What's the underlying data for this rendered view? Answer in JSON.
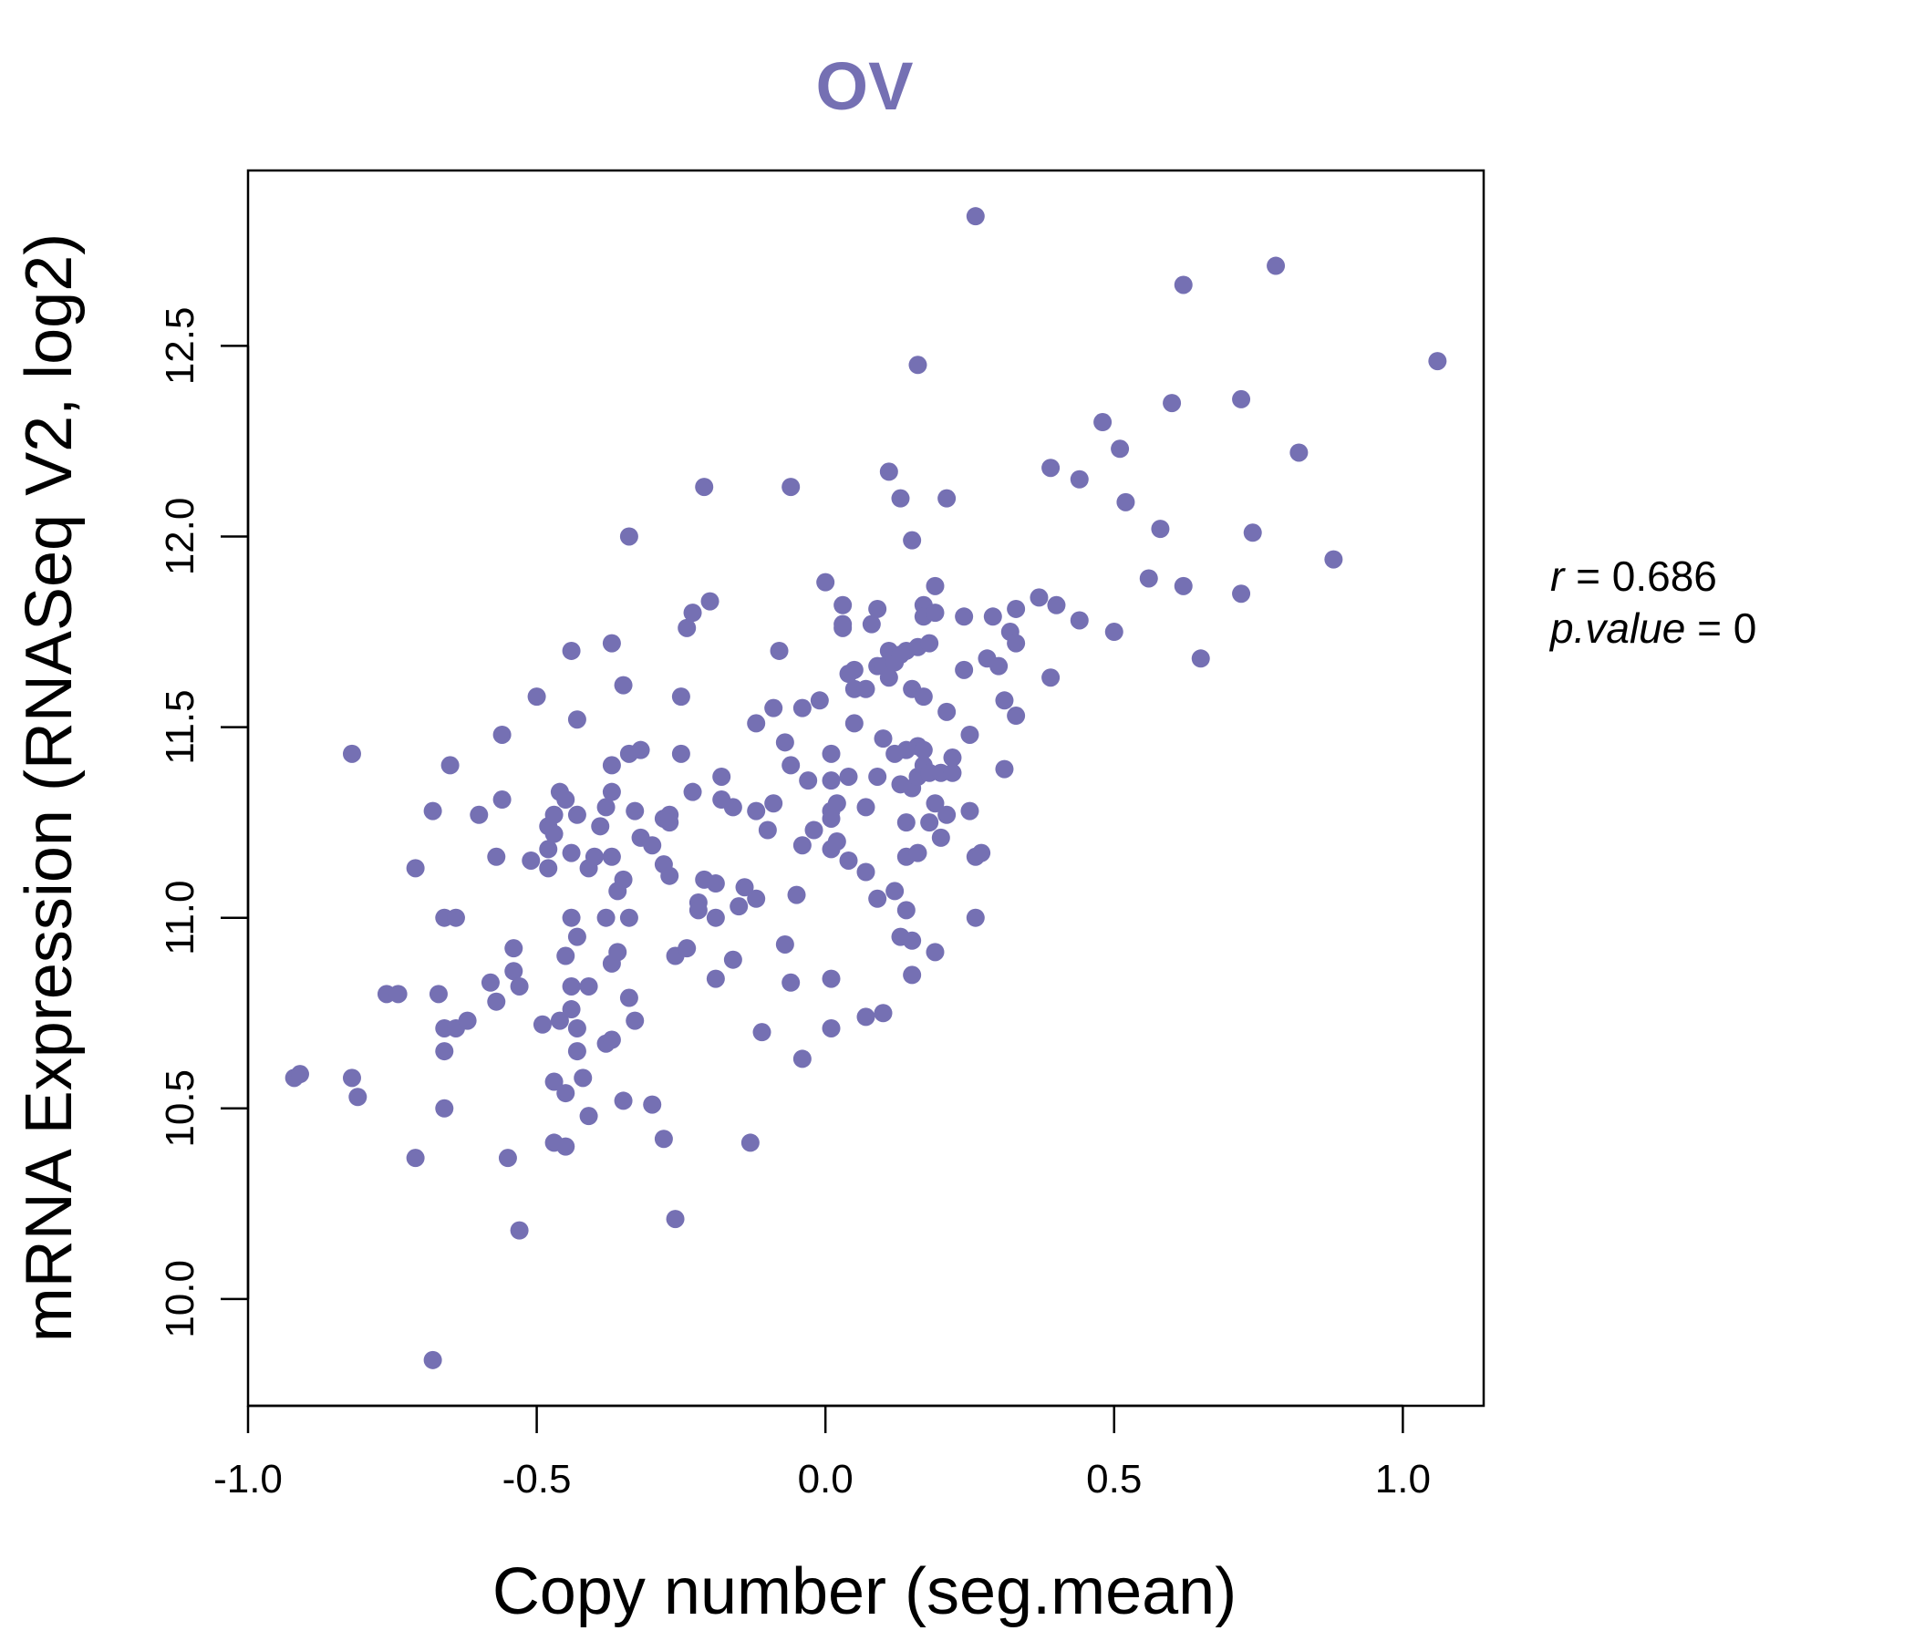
{
  "chart_data": {
    "type": "scatter",
    "title": "OV",
    "xlabel": "Copy number (seg.mean)",
    "ylabel": "mRNA Expression (RNASeq V2, log2)",
    "xlim": [
      -1.0,
      1.14
    ],
    "ylim": [
      9.72,
      12.96
    ],
    "x_ticks": [
      -1.0,
      -0.5,
      0.0,
      0.5,
      1.0
    ],
    "x_tick_labels": [
      "-1.0",
      "-0.5",
      "0.0",
      "0.5",
      "1.0"
    ],
    "y_ticks": [
      10.0,
      10.5,
      11.0,
      11.5,
      12.0,
      12.5
    ],
    "y_tick_labels": [
      "10.0",
      "10.5",
      "11.0",
      "11.5",
      "12.0",
      "12.5"
    ],
    "annotation": {
      "r_label": "r",
      "r_value": "0.686",
      "p_label": "p.value",
      "p_value": "0"
    },
    "color": "#7570b3",
    "points": [
      [
        -0.92,
        10.58
      ],
      [
        -0.91,
        10.59
      ],
      [
        -0.82,
        11.43
      ],
      [
        -0.82,
        10.58
      ],
      [
        -0.81,
        10.53
      ],
      [
        -0.76,
        10.8
      ],
      [
        -0.74,
        10.8
      ],
      [
        -0.71,
        11.13
      ],
      [
        -0.71,
        10.37
      ],
      [
        -0.68,
        11.28
      ],
      [
        -0.67,
        10.8
      ],
      [
        -0.66,
        10.71
      ],
      [
        -0.66,
        10.65
      ],
      [
        -0.66,
        10.5
      ],
      [
        -0.66,
        11.0
      ],
      [
        -0.65,
        11.4
      ],
      [
        -0.64,
        11.0
      ],
      [
        -0.64,
        10.71
      ],
      [
        -0.62,
        10.73
      ],
      [
        -0.6,
        11.27
      ],
      [
        -0.58,
        10.83
      ],
      [
        -0.57,
        11.16
      ],
      [
        -0.57,
        10.78
      ],
      [
        -0.56,
        11.48
      ],
      [
        -0.56,
        11.31
      ],
      [
        -0.55,
        10.37
      ],
      [
        -0.54,
        10.92
      ],
      [
        -0.54,
        10.86
      ],
      [
        -0.53,
        10.82
      ],
      [
        -0.53,
        10.18
      ],
      [
        -0.51,
        11.15
      ],
      [
        -0.5,
        11.58
      ],
      [
        -0.49,
        10.72
      ],
      [
        -0.48,
        11.24
      ],
      [
        -0.48,
        11.18
      ],
      [
        -0.48,
        11.13
      ],
      [
        -0.47,
        11.27
      ],
      [
        -0.47,
        11.22
      ],
      [
        -0.47,
        10.57
      ],
      [
        -0.47,
        10.41
      ],
      [
        -0.46,
        11.33
      ],
      [
        -0.46,
        10.73
      ],
      [
        -0.45,
        11.31
      ],
      [
        -0.45,
        10.9
      ],
      [
        -0.45,
        10.54
      ],
      [
        -0.45,
        10.4
      ],
      [
        -0.44,
        11.7
      ],
      [
        -0.44,
        11.17
      ],
      [
        -0.44,
        11.0
      ],
      [
        -0.44,
        10.82
      ],
      [
        -0.44,
        10.76
      ],
      [
        -0.43,
        11.52
      ],
      [
        -0.43,
        11.27
      ],
      [
        -0.43,
        10.95
      ],
      [
        -0.43,
        10.65
      ],
      [
        -0.43,
        10.71
      ],
      [
        -0.42,
        10.58
      ],
      [
        -0.41,
        10.48
      ],
      [
        -0.41,
        11.13
      ],
      [
        -0.41,
        10.82
      ],
      [
        -0.4,
        11.16
      ],
      [
        -0.39,
        11.24
      ],
      [
        -0.38,
        11.29
      ],
      [
        -0.38,
        11.0
      ],
      [
        -0.38,
        10.67
      ],
      [
        -0.37,
        11.72
      ],
      [
        -0.37,
        11.4
      ],
      [
        -0.37,
        11.33
      ],
      [
        -0.37,
        11.16
      ],
      [
        -0.37,
        10.88
      ],
      [
        -0.37,
        10.68
      ],
      [
        -0.36,
        11.07
      ],
      [
        -0.36,
        10.91
      ],
      [
        -0.35,
        11.61
      ],
      [
        -0.35,
        11.1
      ],
      [
        -0.35,
        10.52
      ],
      [
        -0.34,
        12.0
      ],
      [
        -0.34,
        11.43
      ],
      [
        -0.34,
        11.0
      ],
      [
        -0.34,
        10.79
      ],
      [
        -0.33,
        11.28
      ],
      [
        -0.33,
        10.73
      ],
      [
        -0.32,
        11.44
      ],
      [
        -0.32,
        11.21
      ],
      [
        -0.3,
        11.19
      ],
      [
        -0.3,
        10.51
      ],
      [
        -0.28,
        11.26
      ],
      [
        -0.28,
        11.14
      ],
      [
        -0.28,
        10.42
      ],
      [
        -0.27,
        11.27
      ],
      [
        -0.27,
        11.25
      ],
      [
        -0.27,
        11.11
      ],
      [
        -0.26,
        10.21
      ],
      [
        -0.26,
        10.9
      ],
      [
        -0.25,
        11.58
      ],
      [
        -0.25,
        11.43
      ],
      [
        -0.24,
        11.76
      ],
      [
        -0.24,
        10.92
      ],
      [
        -0.23,
        11.8
      ],
      [
        -0.23,
        11.33
      ],
      [
        -0.22,
        11.04
      ],
      [
        -0.22,
        11.02
      ],
      [
        -0.21,
        12.13
      ],
      [
        -0.21,
        11.1
      ],
      [
        -0.2,
        11.83
      ],
      [
        -0.19,
        11.09
      ],
      [
        -0.19,
        11.0
      ],
      [
        -0.19,
        10.84
      ],
      [
        -0.18,
        11.37
      ],
      [
        -0.18,
        11.31
      ],
      [
        -0.16,
        11.29
      ],
      [
        -0.16,
        10.89
      ],
      [
        -0.15,
        11.03
      ],
      [
        -0.14,
        11.08
      ],
      [
        -0.13,
        10.41
      ],
      [
        -0.12,
        11.51
      ],
      [
        -0.12,
        11.28
      ],
      [
        -0.12,
        11.05
      ],
      [
        -0.11,
        10.7
      ],
      [
        -0.1,
        11.23
      ],
      [
        -0.09,
        11.55
      ],
      [
        -0.09,
        11.3
      ],
      [
        -0.08,
        11.7
      ],
      [
        -0.07,
        11.46
      ],
      [
        -0.07,
        10.93
      ],
      [
        -0.06,
        11.4
      ],
      [
        -0.06,
        10.83
      ],
      [
        -0.06,
        12.13
      ],
      [
        -0.05,
        11.06
      ],
      [
        -0.04,
        11.55
      ],
      [
        -0.04,
        11.19
      ],
      [
        -0.04,
        10.63
      ],
      [
        -0.03,
        11.36
      ],
      [
        -0.02,
        11.23
      ],
      [
        -0.01,
        11.57
      ],
      [
        0.0,
        11.88
      ],
      [
        0.01,
        11.43
      ],
      [
        0.01,
        11.36
      ],
      [
        0.01,
        11.28
      ],
      [
        0.01,
        11.26
      ],
      [
        0.01,
        11.18
      ],
      [
        0.01,
        10.84
      ],
      [
        0.01,
        10.71
      ],
      [
        0.02,
        11.3
      ],
      [
        0.02,
        11.2
      ],
      [
        0.03,
        11.82
      ],
      [
        0.03,
        11.76
      ],
      [
        0.03,
        11.77
      ],
      [
        0.04,
        11.64
      ],
      [
        0.04,
        11.37
      ],
      [
        0.04,
        11.15
      ],
      [
        0.05,
        11.6
      ],
      [
        0.05,
        11.65
      ],
      [
        0.05,
        11.51
      ],
      [
        0.07,
        11.6
      ],
      [
        0.07,
        11.29
      ],
      [
        0.07,
        11.12
      ],
      [
        0.07,
        10.74
      ],
      [
        0.08,
        11.77
      ],
      [
        0.09,
        11.81
      ],
      [
        0.09,
        11.66
      ],
      [
        0.09,
        11.37
      ],
      [
        0.09,
        11.05
      ],
      [
        0.1,
        11.47
      ],
      [
        0.1,
        11.66
      ],
      [
        0.1,
        10.75
      ],
      [
        0.11,
        11.63
      ],
      [
        0.11,
        11.7
      ],
      [
        0.11,
        12.17
      ],
      [
        0.12,
        11.67
      ],
      [
        0.12,
        11.43
      ],
      [
        0.12,
        11.07
      ],
      [
        0.13,
        11.69
      ],
      [
        0.13,
        11.35
      ],
      [
        0.13,
        12.1
      ],
      [
        0.13,
        10.95
      ],
      [
        0.14,
        11.7
      ],
      [
        0.14,
        11.44
      ],
      [
        0.14,
        11.16
      ],
      [
        0.14,
        11.02
      ],
      [
        0.14,
        11.25
      ],
      [
        0.15,
        11.99
      ],
      [
        0.15,
        11.6
      ],
      [
        0.15,
        11.34
      ],
      [
        0.15,
        10.94
      ],
      [
        0.15,
        10.85
      ],
      [
        0.16,
        12.45
      ],
      [
        0.16,
        11.71
      ],
      [
        0.16,
        11.45
      ],
      [
        0.16,
        11.37
      ],
      [
        0.16,
        11.17
      ],
      [
        0.17,
        11.82
      ],
      [
        0.17,
        11.79
      ],
      [
        0.17,
        11.58
      ],
      [
        0.17,
        11.44
      ],
      [
        0.17,
        11.4
      ],
      [
        0.18,
        11.72
      ],
      [
        0.18,
        11.38
      ],
      [
        0.18,
        11.25
      ],
      [
        0.19,
        11.87
      ],
      [
        0.19,
        11.8
      ],
      [
        0.19,
        11.3
      ],
      [
        0.19,
        10.91
      ],
      [
        0.2,
        11.38
      ],
      [
        0.2,
        11.21
      ],
      [
        0.21,
        11.54
      ],
      [
        0.21,
        11.27
      ],
      [
        0.21,
        12.1
      ],
      [
        0.22,
        11.42
      ],
      [
        0.22,
        11.38
      ],
      [
        0.24,
        11.79
      ],
      [
        0.24,
        11.65
      ],
      [
        0.25,
        11.48
      ],
      [
        0.25,
        11.28
      ],
      [
        0.26,
        12.84
      ],
      [
        0.26,
        11.16
      ],
      [
        0.26,
        11.0
      ],
      [
        0.27,
        11.17
      ],
      [
        0.28,
        11.68
      ],
      [
        0.29,
        11.79
      ],
      [
        0.3,
        11.66
      ],
      [
        0.31,
        11.57
      ],
      [
        0.31,
        11.39
      ],
      [
        0.32,
        11.75
      ],
      [
        0.33,
        11.72
      ],
      [
        0.33,
        11.53
      ],
      [
        0.33,
        11.81
      ],
      [
        0.37,
        11.84
      ],
      [
        0.39,
        12.18
      ],
      [
        0.39,
        11.63
      ],
      [
        0.4,
        11.82
      ],
      [
        0.44,
        12.15
      ],
      [
        0.44,
        11.78
      ],
      [
        0.48,
        12.3
      ],
      [
        0.5,
        11.75
      ],
      [
        0.51,
        12.23
      ],
      [
        0.52,
        12.09
      ],
      [
        0.56,
        11.89
      ],
      [
        0.58,
        12.02
      ],
      [
        0.6,
        12.35
      ],
      [
        0.62,
        12.66
      ],
      [
        0.62,
        11.87
      ],
      [
        0.65,
        11.68
      ],
      [
        0.72,
        12.36
      ],
      [
        0.72,
        11.85
      ],
      [
        0.74,
        12.01
      ],
      [
        0.78,
        12.71
      ],
      [
        0.82,
        12.22
      ],
      [
        0.88,
        11.94
      ],
      [
        1.06,
        12.46
      ],
      [
        -0.68,
        9.84
      ]
    ]
  }
}
